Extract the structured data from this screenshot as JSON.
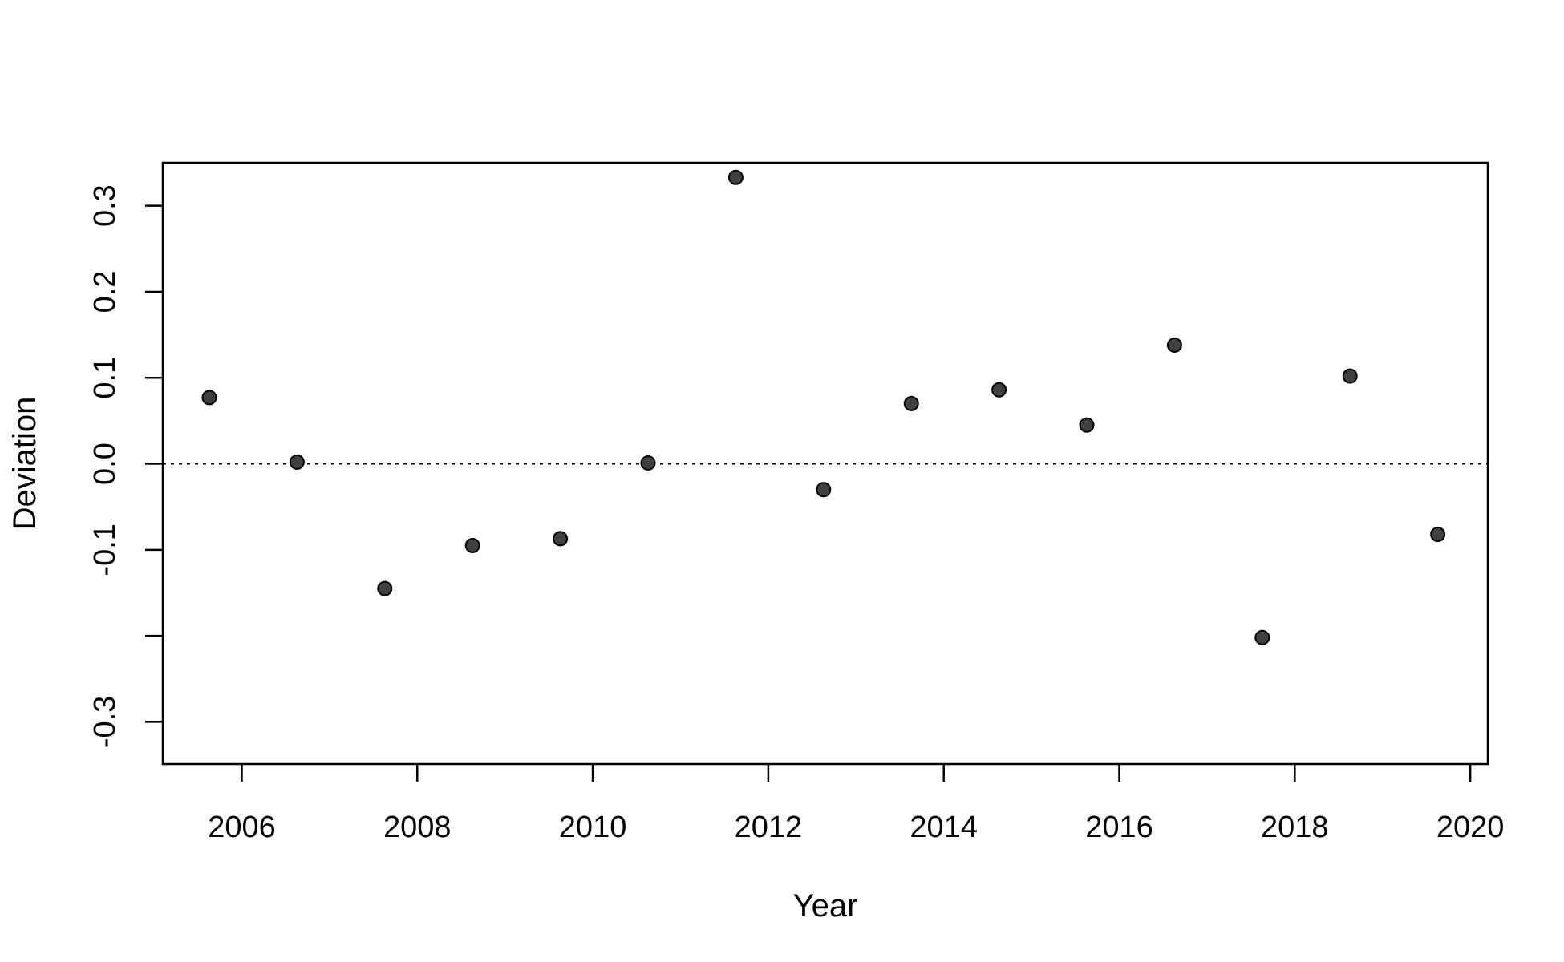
{
  "chart_data": {
    "type": "scatter",
    "title": "",
    "xlabel": "Year",
    "ylabel": "Deviation",
    "xlim": [
      2005.1,
      2020.2
    ],
    "ylim": [
      -0.349,
      0.35
    ],
    "x_ticks": [
      2006,
      2008,
      2010,
      2012,
      2014,
      2016,
      2018,
      2020
    ],
    "x_tick_labels": [
      "2006",
      "2008",
      "2010",
      "2012",
      "2014",
      "2016",
      "2018",
      "2020"
    ],
    "y_ticks": [
      -0.3,
      -0.2,
      -0.1,
      0.0,
      0.1,
      0.2,
      0.3
    ],
    "y_tick_labels": [
      "-0.3",
      "",
      "-0.1",
      "0.0",
      "0.1",
      "0.2",
      "0.3"
    ],
    "reference_line": {
      "y": 0.0,
      "style": "dotted"
    },
    "grid": false,
    "legend": "none",
    "point_color": "#404040",
    "series": [
      {
        "x": [
          2005.63,
          2006.63,
          2007.63,
          2008.63,
          2009.63,
          2010.63,
          2011.63,
          2012.63,
          2013.63,
          2014.63,
          2015.63,
          2016.63,
          2017.63,
          2018.63,
          2019.63
        ],
        "y": [
          0.077,
          0.002,
          -0.145,
          -0.095,
          -0.087,
          0.001,
          0.333,
          -0.03,
          0.07,
          0.086,
          0.045,
          0.138,
          -0.202,
          0.102,
          -0.082
        ]
      }
    ]
  }
}
